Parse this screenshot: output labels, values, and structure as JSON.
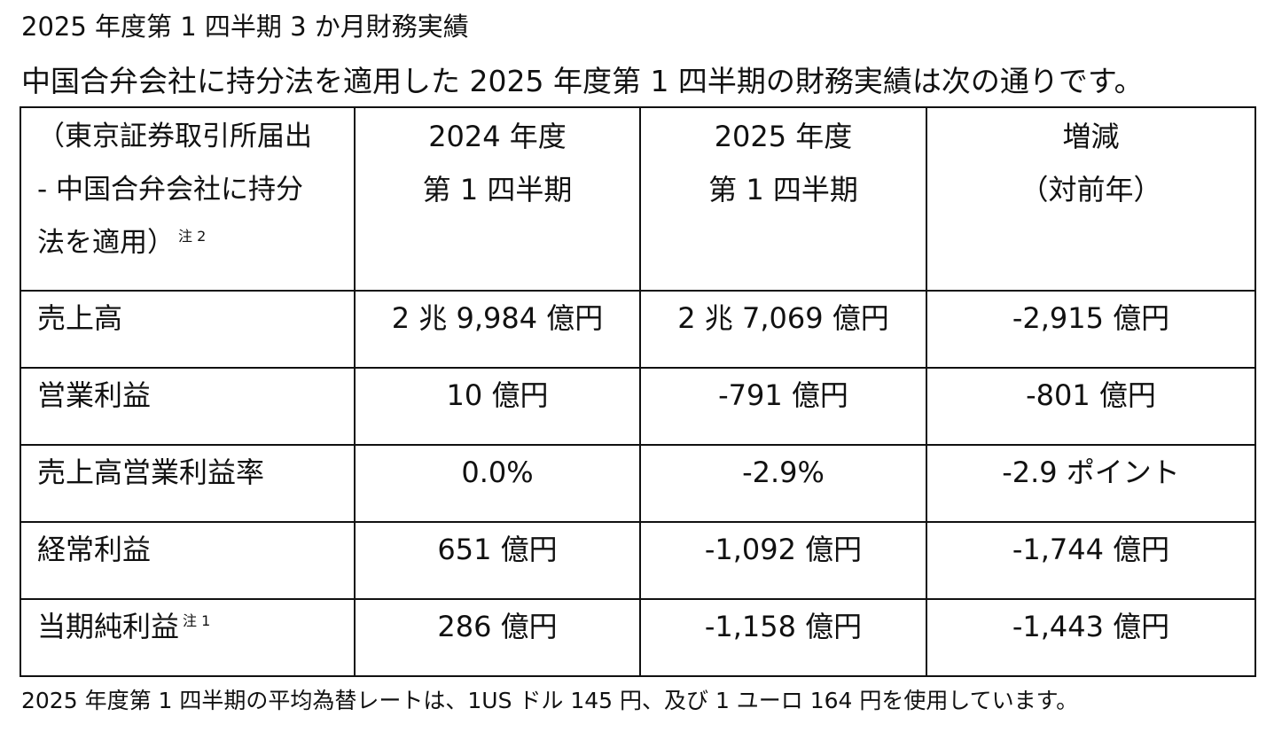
{
  "heading": "2025 年度第 1 四半期 3 か月財務実績",
  "intro": "中国合弁会社に持分法を適用した 2025 年度第 1 四半期の財務実績は次の通りです。",
  "table": {
    "header": {
      "label_lines": [
        "（東京証券取引所届出",
        "-  中国合弁会社に持分",
        "法を適用）"
      ],
      "label_note": "注 2",
      "col_fy2024": [
        "2024 年度",
        "第 1 四半期"
      ],
      "col_fy2025": [
        "2025 年度",
        "第 1 四半期"
      ],
      "col_change": [
        "増減",
        "（対前年）"
      ]
    },
    "rows": [
      {
        "label": "売上高",
        "note": "",
        "fy2024": "2 兆 9,984 億円",
        "fy2025": "2 兆 7,069 億円",
        "change": "-2,915 億円"
      },
      {
        "label": "営業利益",
        "note": "",
        "fy2024": "10 億円",
        "fy2025": "-791 億円",
        "change": "-801 億円"
      },
      {
        "label": "売上高営業利益率",
        "note": "",
        "fy2024": "0.0%",
        "fy2025": "-2.9%",
        "change": "-2.9 ポイント"
      },
      {
        "label": "経常利益",
        "note": "",
        "fy2024": "651 億円",
        "fy2025": "-1,092 億円",
        "change": "-1,744 億円"
      },
      {
        "label": "当期純利益",
        "note": "注 1",
        "fy2024": "286 億円",
        "fy2025": "-1,158 億円",
        "change": "-1,443 億円"
      }
    ]
  },
  "footnote": "2025 年度第 1 四半期の平均為替レートは、1US ドル 145 円、及び 1 ユーロ 164 円を使用しています。"
}
